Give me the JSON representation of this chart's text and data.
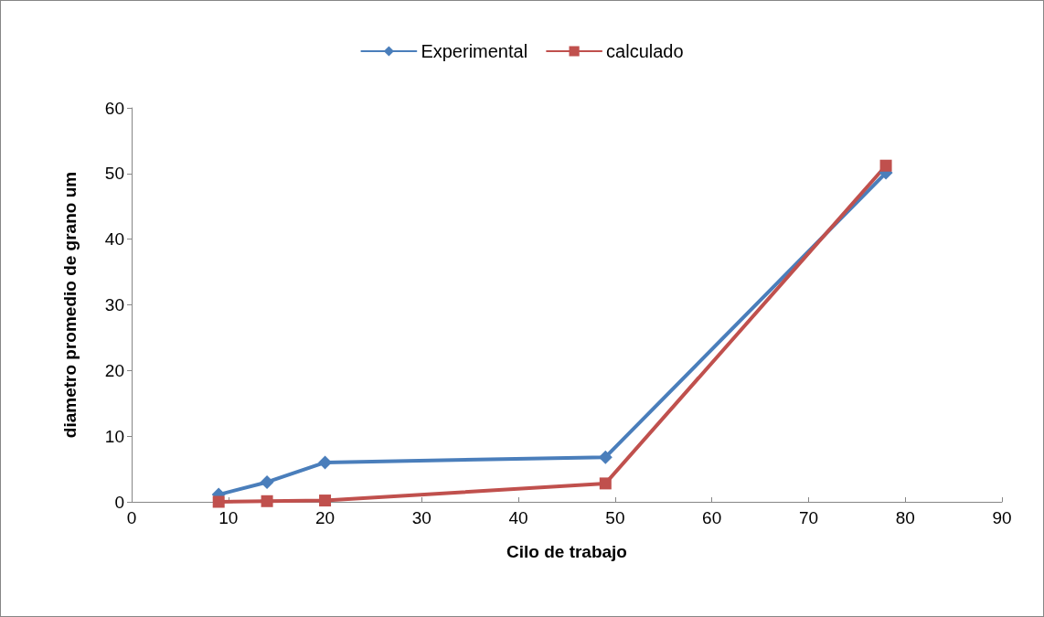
{
  "chart_data": {
    "type": "line",
    "xlabel": "Cilo de trabajo",
    "ylabel": "diametro promedio de grano um",
    "x": [
      9,
      14,
      20,
      49,
      78
    ],
    "series": [
      {
        "name": "Experimental",
        "color": "#4a7ebb",
        "marker": "diamond",
        "values": [
          1.1,
          3.0,
          6.0,
          6.8,
          50.1
        ]
      },
      {
        "name": "calculado",
        "color": "#c0504d",
        "marker": "square",
        "values": [
          0,
          0.1,
          0.2,
          2.8,
          51.2
        ]
      }
    ],
    "xlim": [
      0,
      90
    ],
    "xticks": [
      0,
      10,
      20,
      30,
      40,
      50,
      60,
      70,
      80,
      90
    ],
    "ylim": [
      0,
      60
    ],
    "yticks": [
      0,
      10,
      20,
      30,
      40,
      50,
      60
    ],
    "grid": false,
    "legend": "top",
    "line_style": "solid"
  }
}
